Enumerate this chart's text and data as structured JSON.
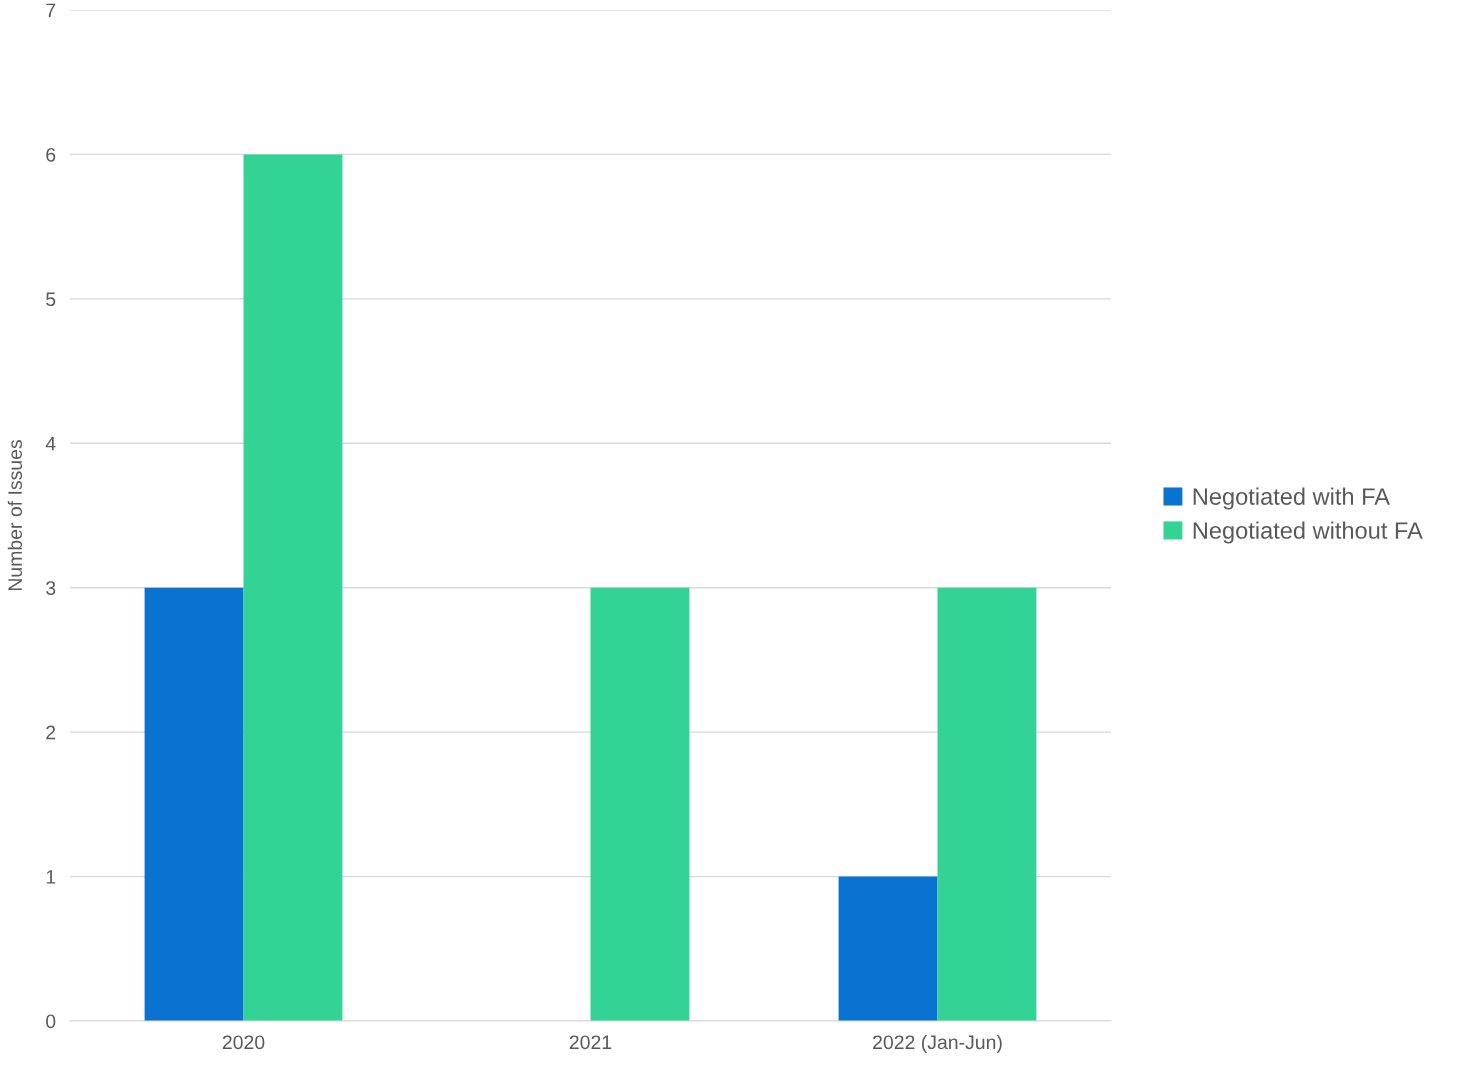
{
  "chart_data": {
    "type": "bar",
    "ylabel": "Number of Issues",
    "categories": [
      "2020",
      "2021",
      "2022 (Jan-Jun)"
    ],
    "series": [
      {
        "name": "Negotiated with FA",
        "color": "#0a72d0",
        "values": [
          3,
          0,
          1
        ]
      },
      {
        "name": "Negotiated without FA",
        "color": "#32d394",
        "values": [
          6,
          3,
          3
        ]
      }
    ],
    "ylim": [
      0,
      7
    ],
    "yticks": [
      0,
      1,
      2,
      3,
      4,
      5,
      6,
      7
    ],
    "grid": "y",
    "legend": "right"
  }
}
